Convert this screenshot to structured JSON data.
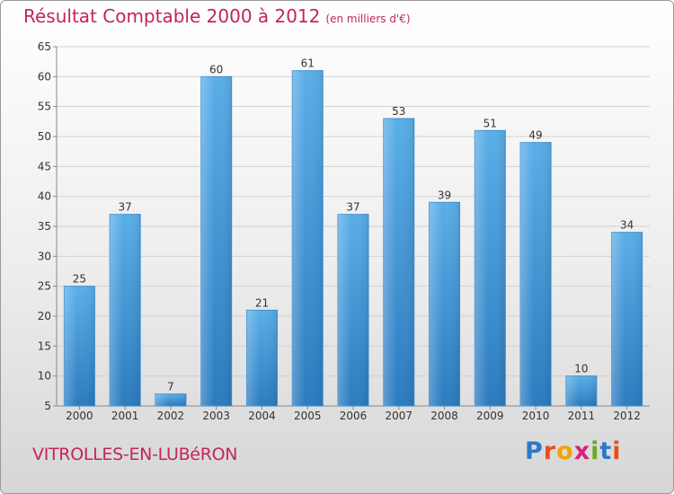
{
  "header": {
    "title": "Résultat Comptable 2000 à 2012",
    "subtitle": "(en milliers d'€)"
  },
  "footer": {
    "commune": "VITROLLES-EN-LUBéRON",
    "logo_text": "Proxiti"
  },
  "colors": {
    "title": "#c4245c",
    "bar_top": "#5aaee8",
    "bar_bottom": "#2a7bc0"
  },
  "chart_data": {
    "type": "bar",
    "title": "Résultat Comptable 2000 à 2012 (en milliers d'€)",
    "xlabel": "",
    "ylabel": "",
    "categories": [
      "2000",
      "2001",
      "2002",
      "2003",
      "2004",
      "2005",
      "2006",
      "2007",
      "2008",
      "2009",
      "2010",
      "2011",
      "2012"
    ],
    "values": [
      25,
      37,
      7,
      60,
      21,
      61,
      37,
      53,
      39,
      51,
      49,
      10,
      34
    ],
    "ylim": [
      5,
      65
    ],
    "yticks": [
      5,
      10,
      15,
      20,
      25,
      30,
      35,
      40,
      45,
      50,
      55,
      60,
      65
    ],
    "grid": true,
    "legend": "none"
  }
}
